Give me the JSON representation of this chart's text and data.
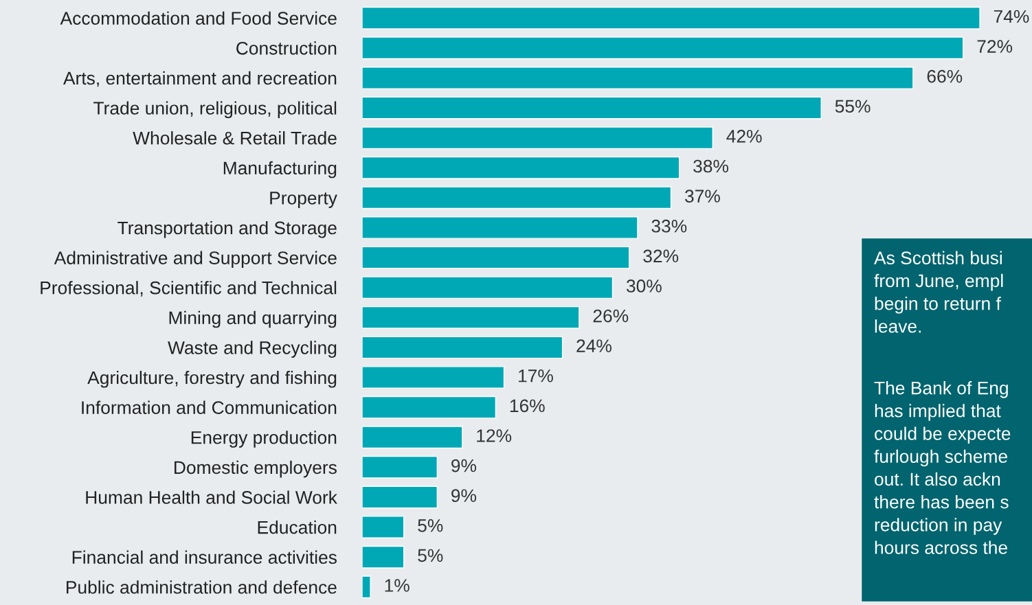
{
  "chart_data": {
    "type": "bar",
    "orientation": "horizontal",
    "categories": [
      "Accommodation and Food Service",
      "Construction",
      "Arts, entertainment and recreation",
      "Trade union, religious, political",
      "Wholesale & Retail Trade",
      "Manufacturing",
      "Property",
      "Transportation and Storage",
      "Administrative and Support Service",
      "Professional, Scientific and Technical",
      "Mining and quarrying",
      "Waste and Recycling",
      "Agriculture, forestry and fishing",
      "Information and Communication",
      "Energy production",
      "Domestic employers",
      "Human Health and Social Work",
      "Education",
      "Financial and insurance activities",
      "Public administration and defence"
    ],
    "values": [
      74,
      72,
      66,
      55,
      42,
      38,
      37,
      33,
      32,
      30,
      26,
      24,
      17,
      16,
      12,
      9,
      9,
      5,
      5,
      1
    ],
    "value_labels": [
      "74%",
      "72%",
      "66%",
      "55%",
      "42%",
      "38%",
      "37%",
      "33%",
      "32%",
      "30%",
      "26%",
      "24%",
      "17%",
      "16%",
      "12%",
      "9%",
      "9%",
      "5%",
      "5%",
      "1%"
    ],
    "color": "#00a8b5",
    "annotations": [
      "As Scottish busi\nfrom June, empl\nbegin to return f\nleave.",
      "The Bank of Eng\nhas implied that\ncould be expecte\nfurlough scheme\nout. It also ackn\nthere has been s\nreduction in pay\nhours across the"
    ],
    "grid": false,
    "legend": false
  }
}
